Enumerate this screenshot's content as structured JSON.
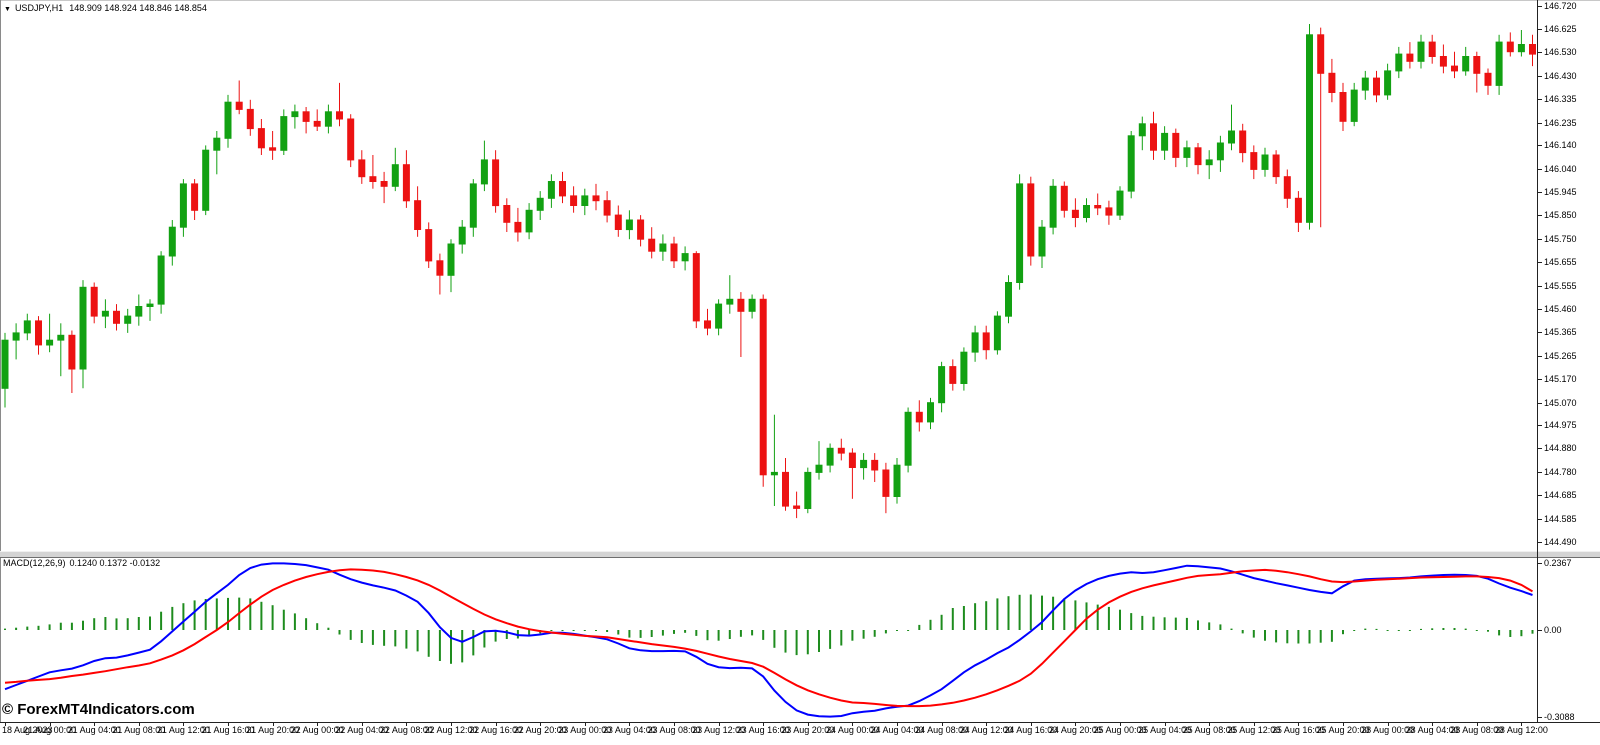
{
  "title_bar": {
    "dropdown_icon": "▼",
    "symbol": "USDJPY,H1",
    "ohlc": "148.909 148.924 148.846 148.854"
  },
  "indicator_panel": {
    "label": "MACD(12,26,9)",
    "values": "0.1240 0.1372 -0.0132"
  },
  "watermark": {
    "text": "© ForexMT4Indicators.com"
  },
  "chart_data": {
    "type": "candlestick",
    "title": "USDJPY,H1",
    "grid": false,
    "price_axis_labels": [
      "146.720",
      "146.625",
      "146.530",
      "146.430",
      "146.335",
      "146.235",
      "146.140",
      "146.040",
      "145.945",
      "145.850",
      "145.750",
      "145.655",
      "145.555",
      "145.460",
      "145.365",
      "145.265",
      "145.170",
      "145.070",
      "144.975",
      "144.880",
      "144.780",
      "144.685",
      "144.585",
      "144.490"
    ],
    "time_axis_labels": [
      "18 Aug 2023",
      "21 Aug 00:00",
      "21 Aug 04:00",
      "21 Aug 08:00",
      "21 Aug 12:00",
      "21 Aug 16:00",
      "21 Aug 20:00",
      "22 Aug 00:00",
      "22 Aug 04:00",
      "22 Aug 08:00",
      "22 Aug 12:00",
      "22 Aug 16:00",
      "22 Aug 20:00",
      "23 Aug 00:00",
      "23 Aug 04:00",
      "23 Aug 08:00",
      "23 Aug 12:00",
      "23 Aug 16:00",
      "23 Aug 20:00",
      "24 Aug 00:00",
      "24 Aug 04:00",
      "24 Aug 08:00",
      "24 Aug 12:00",
      "24 Aug 16:00",
      "24 Aug 20:00",
      "25 Aug 00:00",
      "25 Aug 04:00",
      "25 Aug 08:00",
      "25 Aug 12:00",
      "25 Aug 16:00",
      "25 Aug 20:00",
      "28 Aug 00:00",
      "28 Aug 04:00",
      "28 Aug 08:00",
      "28 Aug 12:00"
    ],
    "ylim": [
      144.44,
      146.75
    ],
    "candles_ohlc": [
      [
        145.13,
        145.36,
        145.05,
        145.33
      ],
      [
        145.33,
        145.4,
        145.25,
        145.36
      ],
      [
        145.36,
        145.44,
        145.33,
        145.41
      ],
      [
        145.41,
        145.43,
        145.27,
        145.31
      ],
      [
        145.31,
        145.44,
        145.28,
        145.33
      ],
      [
        145.33,
        145.4,
        145.18,
        145.35
      ],
      [
        145.35,
        145.37,
        145.11,
        145.21
      ],
      [
        145.21,
        145.58,
        145.13,
        145.55
      ],
      [
        145.55,
        145.57,
        145.4,
        145.43
      ],
      [
        145.43,
        145.5,
        145.38,
        145.45
      ],
      [
        145.45,
        145.48,
        145.37,
        145.4
      ],
      [
        145.4,
        145.46,
        145.36,
        145.43
      ],
      [
        145.43,
        145.52,
        145.39,
        145.47
      ],
      [
        145.47,
        145.5,
        145.41,
        145.48
      ],
      [
        145.48,
        145.7,
        145.44,
        145.68
      ],
      [
        145.68,
        145.83,
        145.64,
        145.8
      ],
      [
        145.8,
        146.0,
        145.76,
        145.98
      ],
      [
        145.98,
        146.0,
        145.83,
        145.87
      ],
      [
        145.87,
        146.14,
        145.85,
        146.12
      ],
      [
        146.12,
        146.2,
        146.02,
        146.17
      ],
      [
        146.17,
        146.35,
        146.13,
        146.32
      ],
      [
        146.32,
        146.41,
        146.27,
        146.29
      ],
      [
        146.29,
        146.33,
        146.18,
        146.21
      ],
      [
        146.21,
        146.25,
        146.1,
        146.13
      ],
      [
        146.13,
        146.2,
        146.08,
        146.12
      ],
      [
        146.12,
        146.29,
        146.1,
        146.26
      ],
      [
        146.26,
        146.31,
        146.21,
        146.28
      ],
      [
        146.28,
        146.3,
        146.19,
        146.24
      ],
      [
        146.24,
        146.29,
        146.2,
        146.22
      ],
      [
        146.22,
        146.31,
        146.19,
        146.28
      ],
      [
        146.28,
        146.4,
        146.22,
        146.25
      ],
      [
        146.25,
        146.27,
        146.05,
        146.08
      ],
      [
        146.08,
        146.12,
        145.98,
        146.01
      ],
      [
        146.01,
        146.1,
        145.96,
        145.99
      ],
      [
        145.99,
        146.03,
        145.9,
        145.97
      ],
      [
        145.97,
        146.13,
        145.95,
        146.06
      ],
      [
        146.06,
        146.12,
        145.88,
        145.91
      ],
      [
        145.91,
        145.97,
        145.76,
        145.79
      ],
      [
        145.79,
        145.82,
        145.63,
        145.66
      ],
      [
        145.66,
        145.69,
        145.52,
        145.6
      ],
      [
        145.6,
        145.75,
        145.53,
        145.73
      ],
      [
        145.73,
        145.83,
        145.69,
        145.8
      ],
      [
        145.8,
        146.0,
        145.76,
        145.98
      ],
      [
        145.98,
        146.16,
        145.95,
        146.08
      ],
      [
        146.08,
        146.12,
        145.86,
        145.89
      ],
      [
        145.89,
        145.92,
        145.78,
        145.82
      ],
      [
        145.82,
        145.88,
        145.74,
        145.78
      ],
      [
        145.78,
        145.9,
        145.75,
        145.87
      ],
      [
        145.87,
        145.95,
        145.83,
        145.92
      ],
      [
        145.92,
        146.02,
        145.88,
        145.99
      ],
      [
        145.99,
        146.03,
        145.9,
        145.93
      ],
      [
        145.93,
        145.97,
        145.86,
        145.89
      ],
      [
        145.89,
        145.96,
        145.85,
        145.93
      ],
      [
        145.93,
        145.98,
        145.87,
        145.91
      ],
      [
        145.91,
        145.95,
        145.82,
        145.85
      ],
      [
        145.85,
        145.89,
        145.76,
        145.79
      ],
      [
        145.79,
        145.87,
        145.75,
        145.83
      ],
      [
        145.83,
        145.85,
        145.72,
        145.75
      ],
      [
        145.75,
        145.8,
        145.67,
        145.7
      ],
      [
        145.7,
        145.77,
        145.66,
        145.73
      ],
      [
        145.73,
        145.76,
        145.63,
        145.66
      ],
      [
        145.66,
        145.72,
        145.62,
        145.69
      ],
      [
        145.69,
        145.7,
        145.38,
        145.41
      ],
      [
        145.41,
        145.46,
        145.35,
        145.38
      ],
      [
        145.38,
        145.5,
        145.35,
        145.48
      ],
      [
        145.48,
        145.6,
        145.44,
        145.5
      ],
      [
        145.5,
        145.53,
        145.26,
        145.45
      ],
      [
        145.45,
        145.52,
        145.42,
        145.5
      ],
      [
        145.5,
        145.52,
        144.72,
        144.77
      ],
      [
        144.77,
        145.02,
        144.64,
        144.78
      ],
      [
        144.78,
        144.84,
        144.62,
        144.64
      ],
      [
        144.64,
        144.7,
        144.59,
        144.63
      ],
      [
        144.63,
        144.8,
        144.61,
        144.78
      ],
      [
        144.78,
        144.91,
        144.75,
        144.81
      ],
      [
        144.81,
        144.9,
        144.78,
        144.88
      ],
      [
        144.88,
        144.92,
        144.83,
        144.86
      ],
      [
        144.86,
        144.88,
        144.67,
        144.8
      ],
      [
        144.8,
        144.86,
        144.75,
        144.83
      ],
      [
        144.83,
        144.86,
        144.74,
        144.79
      ],
      [
        144.79,
        144.82,
        144.61,
        144.68
      ],
      [
        144.68,
        144.84,
        144.65,
        144.81
      ],
      [
        144.81,
        145.05,
        144.78,
        145.03
      ],
      [
        145.03,
        145.08,
        144.95,
        144.99
      ],
      [
        144.99,
        145.09,
        144.96,
        145.07
      ],
      [
        145.07,
        145.24,
        145.03,
        145.22
      ],
      [
        145.22,
        145.25,
        145.12,
        145.15
      ],
      [
        145.15,
        145.3,
        145.12,
        145.28
      ],
      [
        145.28,
        145.39,
        145.24,
        145.36
      ],
      [
        145.36,
        145.39,
        145.25,
        145.29
      ],
      [
        145.29,
        145.45,
        145.27,
        145.43
      ],
      [
        145.43,
        145.6,
        145.4,
        145.57
      ],
      [
        145.57,
        146.02,
        145.54,
        145.98
      ],
      [
        145.98,
        146.01,
        145.64,
        145.68
      ],
      [
        145.68,
        145.83,
        145.63,
        145.8
      ],
      [
        145.8,
        146.0,
        145.77,
        145.97
      ],
      [
        145.97,
        145.99,
        145.84,
        145.87
      ],
      [
        145.87,
        145.92,
        145.8,
        145.84
      ],
      [
        145.84,
        145.92,
        145.82,
        145.89
      ],
      [
        145.89,
        145.94,
        145.85,
        145.88
      ],
      [
        145.88,
        145.91,
        145.81,
        145.85
      ],
      [
        145.85,
        145.97,
        145.83,
        145.95
      ],
      [
        145.95,
        146.2,
        145.92,
        146.18
      ],
      [
        146.18,
        146.26,
        146.12,
        146.23
      ],
      [
        146.23,
        146.28,
        146.08,
        146.12
      ],
      [
        146.12,
        146.22,
        146.08,
        146.19
      ],
      [
        146.19,
        146.21,
        146.05,
        146.09
      ],
      [
        146.09,
        146.16,
        146.05,
        146.13
      ],
      [
        146.13,
        146.15,
        146.02,
        146.06
      ],
      [
        146.06,
        146.12,
        146.0,
        146.08
      ],
      [
        146.08,
        146.18,
        146.03,
        146.15
      ],
      [
        146.15,
        146.31,
        146.12,
        146.2
      ],
      [
        146.2,
        146.23,
        146.07,
        146.11
      ],
      [
        146.11,
        146.14,
        146.0,
        146.04
      ],
      [
        146.04,
        146.13,
        146.01,
        146.1
      ],
      [
        146.1,
        146.12,
        145.98,
        146.01
      ],
      [
        146.01,
        146.04,
        145.88,
        145.92
      ],
      [
        145.92,
        145.95,
        145.78,
        145.82
      ],
      [
        145.82,
        146.645,
        145.79,
        146.6
      ],
      [
        146.6,
        146.63,
        145.8,
        146.44
      ],
      [
        146.44,
        146.5,
        146.32,
        146.36
      ],
      [
        146.36,
        146.4,
        146.2,
        146.24
      ],
      [
        146.24,
        146.4,
        146.22,
        146.37
      ],
      [
        146.37,
        146.45,
        146.33,
        146.42
      ],
      [
        146.42,
        146.45,
        146.32,
        146.35
      ],
      [
        146.35,
        146.48,
        146.33,
        146.45
      ],
      [
        146.45,
        146.55,
        146.42,
        146.52
      ],
      [
        146.52,
        146.57,
        146.46,
        146.49
      ],
      [
        146.49,
        146.6,
        146.46,
        146.57
      ],
      [
        146.57,
        146.6,
        146.48,
        146.51
      ],
      [
        146.51,
        146.56,
        146.44,
        146.47
      ],
      [
        146.47,
        146.53,
        146.42,
        146.45
      ],
      [
        146.45,
        146.55,
        146.43,
        146.51
      ],
      [
        146.51,
        146.53,
        146.36,
        146.44
      ],
      [
        146.44,
        146.46,
        146.35,
        146.39
      ],
      [
        146.39,
        146.6,
        146.35,
        146.57
      ],
      [
        146.57,
        146.61,
        146.51,
        146.53
      ],
      [
        146.53,
        146.62,
        146.51,
        146.56
      ],
      [
        146.56,
        146.6,
        146.47,
        146.52
      ]
    ],
    "macd": {
      "label": "MACD(12,26,9)",
      "current_values": {
        "macd": 0.124,
        "signal": 0.1372,
        "histogram": -0.0132
      },
      "axis_labels": [
        "0.2367",
        "0.00",
        "-0.3088"
      ],
      "ylim": [
        -0.3088,
        0.2367
      ],
      "macd_line": [
        -0.21,
        -0.195,
        -0.18,
        -0.165,
        -0.15,
        -0.143,
        -0.137,
        -0.125,
        -0.11,
        -0.1,
        -0.098,
        -0.09,
        -0.08,
        -0.07,
        -0.04,
        -0.005,
        0.03,
        0.065,
        0.1,
        0.13,
        0.16,
        0.195,
        0.22,
        0.232,
        0.236,
        0.236,
        0.234,
        0.23,
        0.222,
        0.214,
        0.196,
        0.18,
        0.168,
        0.158,
        0.15,
        0.14,
        0.122,
        0.1,
        0.06,
        0.01,
        -0.028,
        -0.042,
        -0.025,
        -0.005,
        -0.003,
        -0.008,
        -0.018,
        -0.02,
        -0.016,
        -0.01,
        -0.01,
        -0.014,
        -0.02,
        -0.026,
        -0.033,
        -0.048,
        -0.065,
        -0.072,
        -0.075,
        -0.075,
        -0.074,
        -0.076,
        -0.095,
        -0.12,
        -0.132,
        -0.135,
        -0.134,
        -0.136,
        -0.165,
        -0.215,
        -0.255,
        -0.285,
        -0.3,
        -0.306,
        -0.307,
        -0.305,
        -0.295,
        -0.29,
        -0.286,
        -0.278,
        -0.272,
        -0.268,
        -0.252,
        -0.232,
        -0.21,
        -0.18,
        -0.15,
        -0.125,
        -0.105,
        -0.082,
        -0.062,
        -0.035,
        -0.005,
        0.028,
        0.07,
        0.11,
        0.14,
        0.163,
        0.18,
        0.192,
        0.2,
        0.205,
        0.202,
        0.205,
        0.212,
        0.22,
        0.228,
        0.226,
        0.222,
        0.218,
        0.208,
        0.196,
        0.184,
        0.175,
        0.166,
        0.158,
        0.15,
        0.142,
        0.135,
        0.13,
        0.155,
        0.175,
        0.18,
        0.182,
        0.183,
        0.184,
        0.186,
        0.19,
        0.193,
        0.195,
        0.196,
        0.195,
        0.192,
        0.182,
        0.165,
        0.15,
        0.138,
        0.124
      ],
      "signal_line": [
        -0.187,
        -0.184,
        -0.18,
        -0.177,
        -0.174,
        -0.169,
        -0.163,
        -0.158,
        -0.152,
        -0.146,
        -0.139,
        -0.132,
        -0.126,
        -0.118,
        -0.105,
        -0.09,
        -0.072,
        -0.05,
        -0.025,
        0.0,
        0.028,
        0.06,
        0.09,
        0.118,
        0.142,
        0.16,
        0.175,
        0.188,
        0.198,
        0.206,
        0.212,
        0.215,
        0.214,
        0.211,
        0.206,
        0.198,
        0.188,
        0.176,
        0.16,
        0.14,
        0.118,
        0.096,
        0.075,
        0.055,
        0.038,
        0.024,
        0.012,
        0.003,
        -0.004,
        -0.009,
        -0.013,
        -0.017,
        -0.021,
        -0.023,
        -0.026,
        -0.032,
        -0.038,
        -0.044,
        -0.05,
        -0.055,
        -0.06,
        -0.066,
        -0.074,
        -0.084,
        -0.094,
        -0.103,
        -0.11,
        -0.117,
        -0.13,
        -0.152,
        -0.175,
        -0.196,
        -0.214,
        -0.228,
        -0.24,
        -0.25,
        -0.257,
        -0.259,
        -0.262,
        -0.266,
        -0.269,
        -0.27,
        -0.27,
        -0.268,
        -0.264,
        -0.258,
        -0.25,
        -0.24,
        -0.228,
        -0.214,
        -0.198,
        -0.18,
        -0.155,
        -0.12,
        -0.08,
        -0.04,
        0.0,
        0.04,
        0.072,
        0.098,
        0.118,
        0.135,
        0.148,
        0.158,
        0.167,
        0.176,
        0.185,
        0.192,
        0.195,
        0.198,
        0.203,
        0.208,
        0.211,
        0.213,
        0.21,
        0.205,
        0.198,
        0.19,
        0.18,
        0.172,
        0.17,
        0.172,
        0.175,
        0.178,
        0.18,
        0.182,
        0.184,
        0.186,
        0.187,
        0.188,
        0.189,
        0.19,
        0.19,
        0.188,
        0.184,
        0.175,
        0.16,
        0.137
      ],
      "histogram": [
        0.005,
        0.008,
        0.012,
        0.015,
        0.02,
        0.026,
        0.026,
        0.033,
        0.042,
        0.046,
        0.041,
        0.042,
        0.046,
        0.048,
        0.065,
        0.082,
        0.095,
        0.105,
        0.11,
        0.112,
        0.114,
        0.115,
        0.112,
        0.1,
        0.088,
        0.072,
        0.059,
        0.042,
        0.024,
        0.008,
        -0.016,
        -0.035,
        -0.046,
        -0.053,
        -0.056,
        -0.058,
        -0.066,
        -0.076,
        -0.095,
        -0.11,
        -0.12,
        -0.115,
        -0.09,
        -0.062,
        -0.041,
        -0.032,
        -0.03,
        -0.023,
        -0.012,
        -0.001,
        0.003,
        0.003,
        0.001,
        -0.003,
        -0.007,
        -0.016,
        -0.027,
        -0.028,
        -0.025,
        -0.02,
        -0.014,
        -0.01,
        -0.021,
        -0.036,
        -0.038,
        -0.032,
        -0.024,
        -0.019,
        -0.035,
        -0.063,
        -0.08,
        -0.089,
        -0.086,
        -0.078,
        -0.067,
        -0.055,
        -0.038,
        -0.031,
        -0.024,
        -0.012,
        -0.003,
        0.002,
        0.018,
        0.036,
        0.054,
        0.078,
        0.085,
        0.095,
        0.102,
        0.112,
        0.12,
        0.125,
        0.126,
        0.122,
        0.118,
        0.112,
        0.105,
        0.098,
        0.09,
        0.082,
        0.072,
        0.06,
        0.05,
        0.047,
        0.045,
        0.044,
        0.043,
        0.034,
        0.027,
        0.02,
        0.005,
        -0.012,
        -0.027,
        -0.038,
        -0.044,
        -0.047,
        -0.048,
        -0.048,
        -0.045,
        -0.042,
        -0.015,
        0.003,
        0.005,
        0.004,
        0.003,
        0.002,
        0.002,
        0.004,
        0.006,
        0.007,
        0.007,
        0.005,
        0.002,
        -0.006,
        -0.019,
        -0.025,
        -0.022,
        -0.013
      ]
    },
    "colors": {
      "background": "#ffffff",
      "bull": "#12a112",
      "bear": "#ec1212",
      "macd_line": "#0000ff",
      "signal_line": "#ff0000",
      "histogram": "#1e8c1e",
      "axis_text": "#000000"
    }
  }
}
